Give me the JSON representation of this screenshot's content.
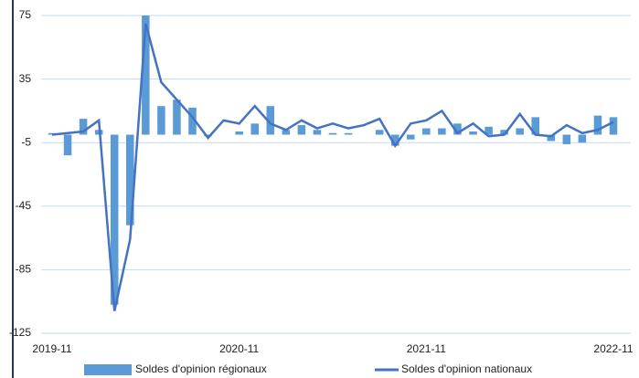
{
  "chart_data": {
    "type": "bar_line",
    "categories": [
      "2019-11",
      null,
      null,
      null,
      null,
      null,
      null,
      null,
      null,
      null,
      null,
      null,
      "2020-11",
      null,
      null,
      null,
      null,
      null,
      null,
      null,
      null,
      null,
      null,
      null,
      "2021-11",
      null,
      null,
      null,
      null,
      null,
      null,
      null,
      null,
      null,
      null,
      null,
      "2022-11"
    ],
    "series": [
      {
        "name": "Soldes d'opinion régionaux",
        "type": "bar",
        "color": "#5b9bd5",
        "values": [
          1,
          -13,
          10,
          3,
          -107,
          -57,
          75,
          18,
          22,
          17,
          -1,
          0,
          2,
          7,
          18,
          3,
          6,
          3,
          1,
          1,
          0,
          3,
          -7,
          -3,
          4,
          4,
          7,
          2,
          5,
          3,
          4,
          11,
          -4,
          -6,
          -5,
          12,
          11
        ]
      },
      {
        "name": "Soldes d'opinion nationaux",
        "type": "line",
        "color": "#4472c4",
        "values": [
          0,
          1,
          2,
          9,
          -111,
          -66,
          70,
          33,
          22,
          11,
          -2,
          9,
          7,
          18,
          7,
          3,
          9,
          4,
          7,
          4,
          6,
          10,
          -7,
          7,
          9,
          15,
          1,
          7,
          -1,
          0,
          13,
          0,
          -1,
          6,
          1,
          3,
          8
        ]
      }
    ],
    "ylim": [
      -125,
      75
    ],
    "yticks": [
      -125,
      -85,
      -45,
      -5,
      35,
      75
    ],
    "grid": true,
    "legend": "bottom"
  }
}
